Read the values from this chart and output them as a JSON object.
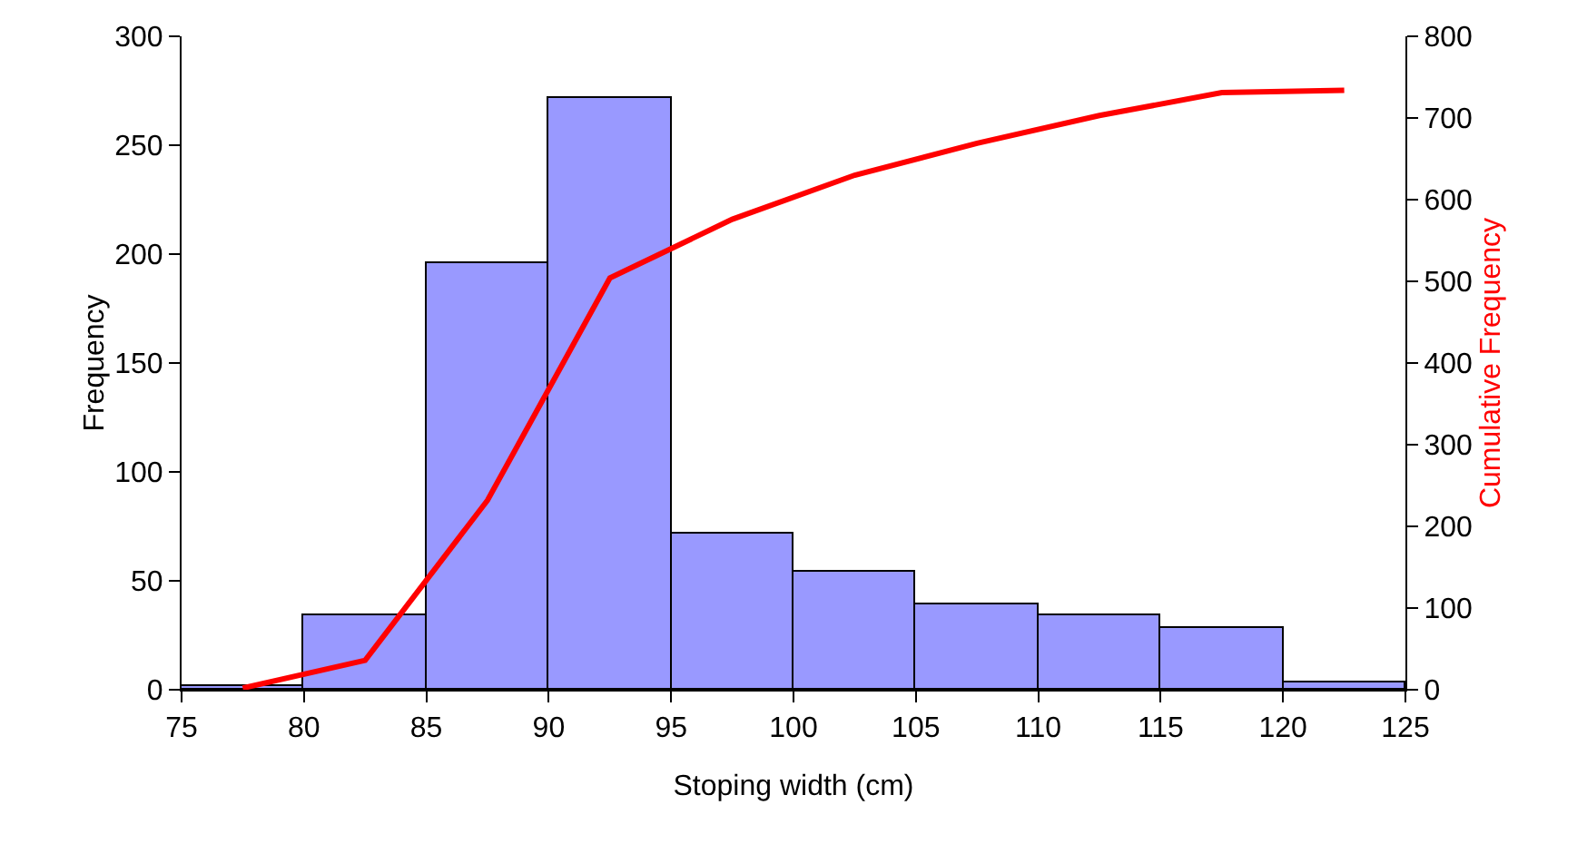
{
  "chart_data": {
    "type": "histogram",
    "xlabel": "Stoping width (cm)",
    "ylabel": "Frequency",
    "y2label": "Cumulative Frequency",
    "series": [
      {
        "type": "histogram",
        "bins": [
          75,
          80,
          85,
          90,
          95,
          100,
          105,
          110,
          115,
          120,
          125
        ],
        "values": [
          2,
          34,
          196,
          272,
          72,
          54,
          39,
          34,
          28,
          3
        ],
        "color": "#9999ff"
      },
      {
        "type": "line",
        "axis": "y2",
        "x": [
          77.5,
          82.5,
          87.5,
          92.5,
          97.5,
          102.5,
          107.5,
          112.5,
          117.5,
          122.5
        ],
        "values": [
          2,
          36,
          232,
          504,
          576,
          630,
          669,
          703,
          731,
          734
        ],
        "color": "#ff0000"
      }
    ],
    "xlim": [
      75,
      125
    ],
    "xticks": [
      75,
      80,
      85,
      90,
      95,
      100,
      105,
      110,
      115,
      120,
      125
    ],
    "ylim": [
      0,
      300
    ],
    "yticks": [
      0,
      50,
      100,
      150,
      200,
      250,
      300
    ],
    "y2lim": [
      0,
      800
    ],
    "y2ticks": [
      0,
      100,
      200,
      300,
      400,
      500,
      600,
      700,
      800
    ],
    "grid": false,
    "legend": false,
    "marker": "none"
  }
}
